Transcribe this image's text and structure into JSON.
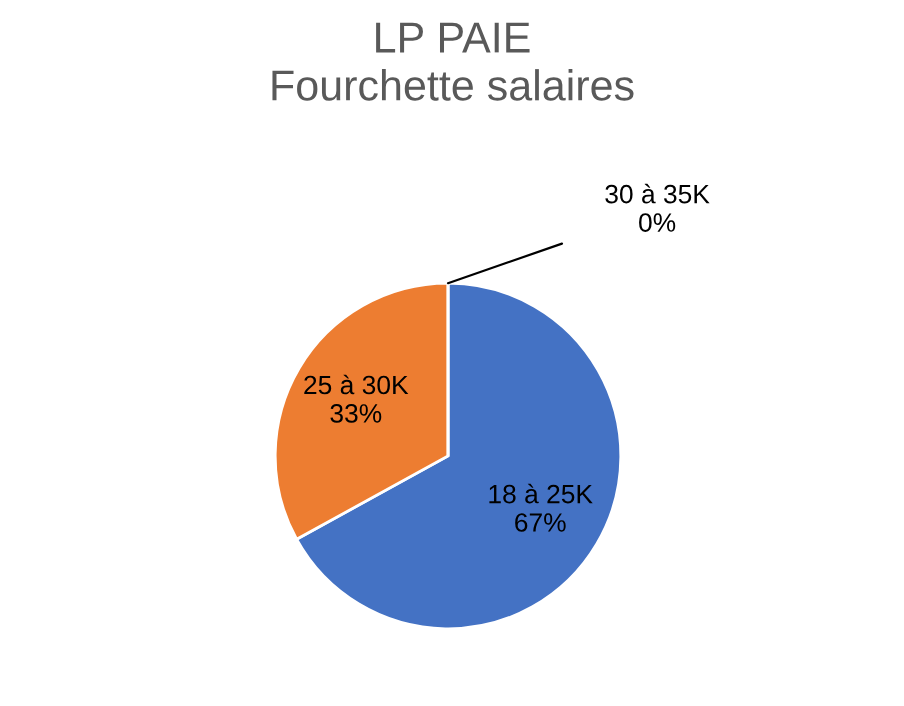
{
  "chart_data": {
    "type": "pie",
    "title": "LP PAIE\nFourchette salaires",
    "categories": [
      "18 à 25K",
      "25 à 30K",
      "30 à 35K"
    ],
    "values": [
      67,
      33,
      0
    ],
    "colors": [
      "#4472c4",
      "#ed7d31",
      "#a5a5a5"
    ],
    "value_labels": [
      "67%",
      "33%",
      "0%"
    ],
    "legend": false
  }
}
